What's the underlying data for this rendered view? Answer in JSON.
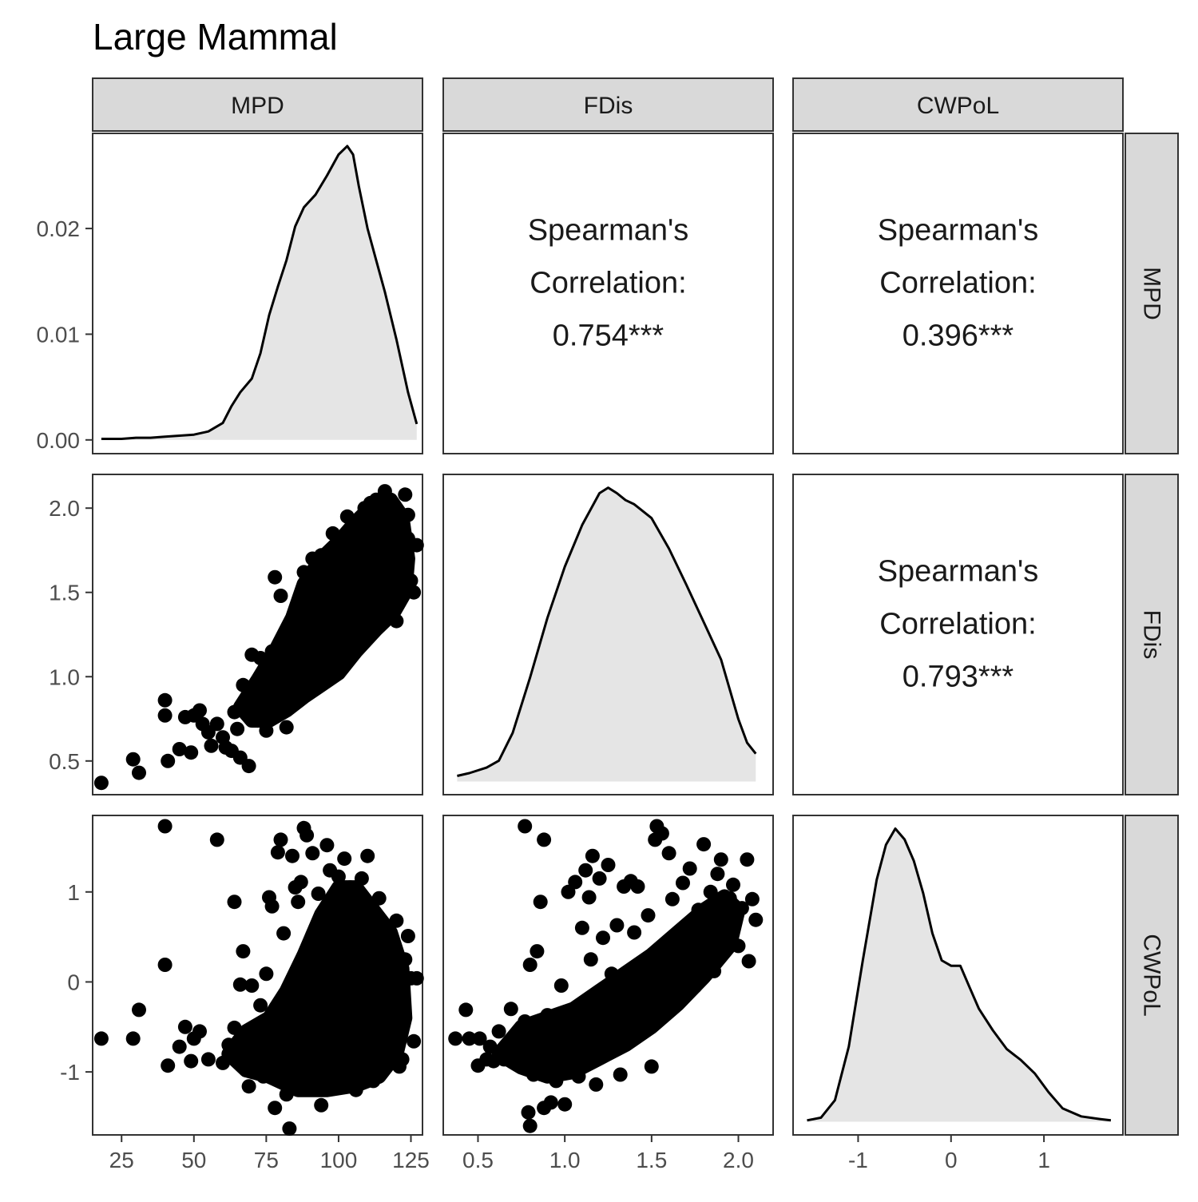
{
  "chart_data": {
    "type": "scatter-matrix",
    "title": "Large Mammal",
    "variables": [
      "MPD",
      "FDis",
      "CWPoL"
    ],
    "axes": {
      "MPD": {
        "range": [
          15,
          129
        ],
        "ticks": [
          25,
          50,
          75,
          100,
          125
        ],
        "tick_labels": [
          "25",
          "50",
          "75",
          "100",
          "125"
        ]
      },
      "FDis": {
        "range": [
          0.3,
          2.2
        ],
        "ticks": [
          0.5,
          1.0,
          1.5,
          2.0
        ],
        "tick_labels": [
          "0.5",
          "1.0",
          "1.5",
          "2.0"
        ]
      },
      "CWPoL": {
        "range": [
          -1.7,
          1.85
        ],
        "ticks": [
          -1,
          0,
          1
        ],
        "tick_labels": [
          "-1",
          "0",
          "1"
        ]
      }
    },
    "diagonal_density_axis": {
      "range": [
        -0.0013,
        0.029
      ],
      "ticks": [
        0.0,
        0.01,
        0.02
      ],
      "tick_labels": [
        "0.00",
        "0.01",
        "0.02"
      ]
    },
    "densities": {
      "MPD": {
        "x": [
          18,
          25,
          30,
          35,
          40,
          45,
          50,
          55,
          60,
          63,
          66,
          70,
          73,
          76,
          79,
          82,
          85,
          88,
          92,
          96,
          100,
          103,
          105,
          107,
          110,
          113,
          116,
          120,
          124,
          127
        ],
        "y": [
          0.0001,
          0.0001,
          0.0002,
          0.0002,
          0.0003,
          0.0004,
          0.0005,
          0.0008,
          0.0016,
          0.0032,
          0.0045,
          0.0058,
          0.0082,
          0.0118,
          0.0145,
          0.017,
          0.0202,
          0.022,
          0.0232,
          0.025,
          0.027,
          0.0278,
          0.027,
          0.024,
          0.02,
          0.017,
          0.014,
          0.0095,
          0.0045,
          0.0015
        ]
      },
      "FDis": {
        "x": [
          0.38,
          0.45,
          0.55,
          0.62,
          0.7,
          0.8,
          0.9,
          1.0,
          1.1,
          1.2,
          1.25,
          1.3,
          1.35,
          1.4,
          1.5,
          1.6,
          1.7,
          1.8,
          1.9,
          2.0,
          2.05,
          2.1
        ],
        "y": [
          0.04,
          0.06,
          0.1,
          0.15,
          0.35,
          0.75,
          1.18,
          1.55,
          1.85,
          2.08,
          2.12,
          2.08,
          2.03,
          2.0,
          1.9,
          1.68,
          1.42,
          1.15,
          0.88,
          0.45,
          0.28,
          0.2
        ]
      },
      "CWPoL": {
        "x": [
          -1.55,
          -1.4,
          -1.25,
          -1.1,
          -0.95,
          -0.8,
          -0.7,
          -0.6,
          -0.5,
          -0.4,
          -0.3,
          -0.2,
          -0.1,
          0.0,
          0.1,
          0.2,
          0.3,
          0.45,
          0.6,
          0.75,
          0.9,
          1.05,
          1.2,
          1.4,
          1.6,
          1.72
        ],
        "y": [
          0.005,
          0.015,
          0.08,
          0.28,
          0.6,
          0.9,
          1.03,
          1.09,
          1.05,
          0.97,
          0.85,
          0.7,
          0.6,
          0.58,
          0.58,
          0.5,
          0.42,
          0.34,
          0.27,
          0.23,
          0.18,
          0.11,
          0.05,
          0.02,
          0.01,
          0.005
        ]
      }
    },
    "correlations": [
      {
        "row": "MPD",
        "col": "FDis",
        "lines": [
          "Spearman's",
          "Correlation:",
          "0.754***"
        ]
      },
      {
        "row": "MPD",
        "col": "CWPoL",
        "lines": [
          "Spearman's",
          "Correlation:",
          "0.396***"
        ]
      },
      {
        "row": "FDis",
        "col": "CWPoL",
        "lines": [
          "Spearman's",
          "Correlation:",
          "0.793***"
        ]
      }
    ],
    "scatter_mpd_fdis": [
      [
        18,
        0.37
      ],
      [
        29,
        0.51
      ],
      [
        31,
        0.43
      ],
      [
        40,
        0.86
      ],
      [
        40,
        0.77
      ],
      [
        41,
        0.5
      ],
      [
        45,
        0.57
      ],
      [
        47,
        0.76
      ],
      [
        49,
        0.55
      ],
      [
        50,
        0.77
      ],
      [
        52,
        0.8
      ],
      [
        53,
        0.72
      ],
      [
        55,
        0.67
      ],
      [
        56,
        0.59
      ],
      [
        58,
        0.72
      ],
      [
        60,
        0.64
      ],
      [
        61,
        0.58
      ],
      [
        63,
        0.56
      ],
      [
        64,
        0.79
      ],
      [
        65,
        0.69
      ],
      [
        66,
        0.52
      ],
      [
        67,
        0.95
      ],
      [
        69,
        0.47
      ],
      [
        70,
        1.13
      ],
      [
        72,
        0.74
      ],
      [
        73,
        1.11
      ],
      [
        75,
        0.68
      ],
      [
        77,
        1.15
      ],
      [
        78,
        1.59
      ],
      [
        79,
        0.94
      ],
      [
        80,
        1.48
      ],
      [
        82,
        0.7
      ],
      [
        83,
        1.3
      ],
      [
        85,
        0.88
      ],
      [
        86,
        1.42
      ],
      [
        88,
        1.62
      ],
      [
        90,
        0.94
      ],
      [
        91,
        1.7
      ],
      [
        93,
        1.04
      ],
      [
        94,
        1.72
      ],
      [
        96,
        1.46
      ],
      [
        98,
        1.85
      ],
      [
        99,
        1.05
      ],
      [
        100,
        1.8
      ],
      [
        101,
        1.72
      ],
      [
        103,
        1.95
      ],
      [
        104,
        1.23
      ],
      [
        105,
        1.15
      ],
      [
        106,
        1.92
      ],
      [
        107,
        1.7
      ],
      [
        108,
        1.33
      ],
      [
        109,
        2.0
      ],
      [
        110,
        1.45
      ],
      [
        111,
        2.03
      ],
      [
        112,
        1.33
      ],
      [
        113,
        2.05
      ],
      [
        114,
        1.76
      ],
      [
        115,
        1.58
      ],
      [
        116,
        2.1
      ],
      [
        117,
        1.42
      ],
      [
        118,
        2.04
      ],
      [
        119,
        1.86
      ],
      [
        120,
        1.33
      ],
      [
        121,
        1.96
      ],
      [
        122,
        1.62
      ],
      [
        123,
        2.08
      ],
      [
        124,
        1.82
      ],
      [
        124,
        1.96
      ],
      [
        125,
        1.57
      ],
      [
        126,
        1.5
      ],
      [
        127,
        1.78
      ]
    ],
    "scatter_mpd_cwpol": [
      [
        18,
        -0.63
      ],
      [
        29,
        -0.63
      ],
      [
        31,
        -0.31
      ],
      [
        40,
        1.73
      ],
      [
        40,
        0.19
      ],
      [
        41,
        -0.93
      ],
      [
        45,
        -0.72
      ],
      [
        47,
        -0.5
      ],
      [
        49,
        -0.88
      ],
      [
        50,
        -0.63
      ],
      [
        52,
        -0.55
      ],
      [
        55,
        -0.86
      ],
      [
        58,
        1.58
      ],
      [
        60,
        -0.9
      ],
      [
        62,
        -0.7
      ],
      [
        64,
        0.89
      ],
      [
        64,
        -0.51
      ],
      [
        66,
        -0.03
      ],
      [
        67,
        0.34
      ],
      [
        68,
        -0.98
      ],
      [
        69,
        -1.16
      ],
      [
        70,
        -0.04
      ],
      [
        72,
        -0.86
      ],
      [
        73,
        -0.26
      ],
      [
        74,
        -1.05
      ],
      [
        75,
        0.09
      ],
      [
        76,
        0.94
      ],
      [
        77,
        0.84
      ],
      [
        78,
        -1.4
      ],
      [
        79,
        1.44
      ],
      [
        80,
        1.58
      ],
      [
        81,
        0.54
      ],
      [
        82,
        -1.25
      ],
      [
        83,
        -1.63
      ],
      [
        84,
        1.4
      ],
      [
        85,
        1.05
      ],
      [
        86,
        0.89
      ],
      [
        87,
        1.11
      ],
      [
        88,
        1.71
      ],
      [
        89,
        1.63
      ],
      [
        90,
        -1.17
      ],
      [
        91,
        1.43
      ],
      [
        92,
        -1.03
      ],
      [
        93,
        0.98
      ],
      [
        94,
        -1.37
      ],
      [
        96,
        1.52
      ],
      [
        97,
        1.24
      ],
      [
        98,
        -1.05
      ],
      [
        100,
        1.17
      ],
      [
        101,
        0.39
      ],
      [
        102,
        1.37
      ],
      [
        104,
        1.05
      ],
      [
        106,
        -1.2
      ],
      [
        108,
        1.15
      ],
      [
        110,
        1.4
      ],
      [
        111,
        -1.03
      ],
      [
        112,
        -1.1
      ],
      [
        113,
        0.68
      ],
      [
        114,
        0.93
      ],
      [
        115,
        -0.63
      ],
      [
        116,
        0.27
      ],
      [
        117,
        -0.75
      ],
      [
        118,
        0.49
      ],
      [
        119,
        -0.26
      ],
      [
        120,
        0.68
      ],
      [
        121,
        -0.94
      ],
      [
        122,
        -0.86
      ],
      [
        123,
        0.25
      ],
      [
        124,
        0.51
      ],
      [
        125,
        0.04
      ],
      [
        126,
        -0.66
      ],
      [
        127,
        0.04
      ]
    ],
    "scatter_fdis_cwpol": [
      [
        0.37,
        -0.63
      ],
      [
        0.43,
        -0.31
      ],
      [
        0.45,
        -0.63
      ],
      [
        0.5,
        -0.93
      ],
      [
        0.51,
        -0.63
      ],
      [
        0.55,
        -0.86
      ],
      [
        0.57,
        -0.72
      ],
      [
        0.59,
        -0.88
      ],
      [
        0.62,
        -0.55
      ],
      [
        0.65,
        -0.86
      ],
      [
        0.69,
        -0.3
      ],
      [
        0.72,
        -0.86
      ],
      [
        0.74,
        -0.7
      ],
      [
        0.77,
        1.73
      ],
      [
        0.77,
        -0.44
      ],
      [
        0.79,
        -1.45
      ],
      [
        0.8,
        0.19
      ],
      [
        0.8,
        -1.6
      ],
      [
        0.82,
        -1.03
      ],
      [
        0.84,
        0.34
      ],
      [
        0.86,
        0.89
      ],
      [
        0.86,
        -0.89
      ],
      [
        0.88,
        1.58
      ],
      [
        0.88,
        -1.4
      ],
      [
        0.9,
        -0.37
      ],
      [
        0.92,
        -1.34
      ],
      [
        0.94,
        -0.66
      ],
      [
        0.95,
        -1.1
      ],
      [
        0.98,
        -0.04
      ],
      [
        1.0,
        -1.36
      ],
      [
        1.02,
        1.0
      ],
      [
        1.04,
        -0.52
      ],
      [
        1.06,
        1.11
      ],
      [
        1.08,
        -1.05
      ],
      [
        1.1,
        0.6
      ],
      [
        1.12,
        1.24
      ],
      [
        1.14,
        0.94
      ],
      [
        1.15,
        0.25
      ],
      [
        1.16,
        1.4
      ],
      [
        1.18,
        -1.14
      ],
      [
        1.2,
        1.15
      ],
      [
        1.22,
        0.49
      ],
      [
        1.24,
        -0.2
      ],
      [
        1.25,
        1.3
      ],
      [
        1.27,
        0.09
      ],
      [
        1.3,
        0.63
      ],
      [
        1.32,
        -1.03
      ],
      [
        1.34,
        1.06
      ],
      [
        1.36,
        -0.59
      ],
      [
        1.38,
        1.12
      ],
      [
        1.4,
        0.55
      ],
      [
        1.42,
        1.06
      ],
      [
        1.45,
        -0.4
      ],
      [
        1.48,
        0.74
      ],
      [
        1.5,
        -0.94
      ],
      [
        1.52,
        1.58
      ],
      [
        1.53,
        1.73
      ],
      [
        1.56,
        1.65
      ],
      [
        1.58,
        0.2
      ],
      [
        1.6,
        1.43
      ],
      [
        1.62,
        0.92
      ],
      [
        1.65,
        -0.23
      ],
      [
        1.68,
        1.1
      ],
      [
        1.7,
        0.4
      ],
      [
        1.72,
        1.26
      ],
      [
        1.75,
        -0.05
      ],
      [
        1.77,
        0.8
      ],
      [
        1.8,
        1.53
      ],
      [
        1.82,
        0.47
      ],
      [
        1.84,
        1.0
      ],
      [
        1.86,
        0.12
      ],
      [
        1.88,
        1.2
      ],
      [
        1.9,
        1.36
      ],
      [
        1.92,
        0.63
      ],
      [
        1.95,
        0.93
      ],
      [
        1.97,
        1.08
      ],
      [
        2.0,
        0.4
      ],
      [
        2.02,
        0.82
      ],
      [
        2.05,
        1.36
      ],
      [
        2.06,
        0.23
      ],
      [
        2.08,
        0.92
      ],
      [
        2.1,
        0.69
      ]
    ]
  }
}
